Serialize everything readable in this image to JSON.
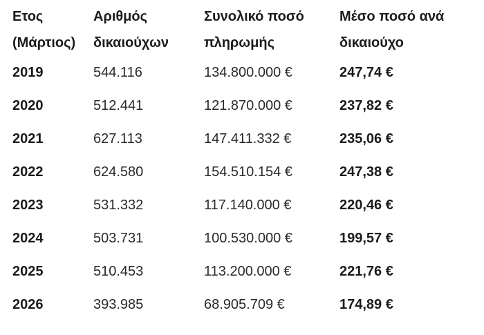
{
  "chart_data": {
    "type": "table",
    "title": "",
    "columns": [
      {
        "key": "year",
        "line1": "Ετος",
        "line2": "(Μάρτιος)"
      },
      {
        "key": "beneficiaries",
        "line1": "Αριθμός",
        "line2": "δικαιούχων"
      },
      {
        "key": "total",
        "line1": "Συνολικό ποσό",
        "line2": "πληρωμής"
      },
      {
        "key": "average",
        "line1": "Μέσο ποσό ανά",
        "line2": "δικαιούχο"
      }
    ],
    "rows": [
      {
        "year": "2019",
        "beneficiaries": "544.116",
        "total": "134.800.000 €",
        "average": "247,74 €"
      },
      {
        "year": "2020",
        "beneficiaries": "512.441",
        "total": "121.870.000 €",
        "average": "237,82 €"
      },
      {
        "year": "2021",
        "beneficiaries": "627.113",
        "total": "147.411.332 €",
        "average": "235,06 €"
      },
      {
        "year": "2022",
        "beneficiaries": "624.580",
        "total": "154.510.154 €",
        "average": "247,38 €"
      },
      {
        "year": "2023",
        "beneficiaries": "531.332",
        "total": "117.140.000 €",
        "average": "220,46 €"
      },
      {
        "year": "2024",
        "beneficiaries": "503.731",
        "total": "100.530.000 €",
        "average": "199,57 €"
      },
      {
        "year": "2025",
        "beneficiaries": "510.453",
        "total": "113.200.000 €",
        "average": "221,76 €"
      },
      {
        "year": "2026",
        "beneficiaries": "393.985",
        "total": "68.905.709 €",
        "average": "174,89 €"
      }
    ],
    "units": {
      "beneficiaries": "count",
      "total": "EUR",
      "average": "EUR"
    }
  },
  "colors": {
    "background": "#ffffff",
    "text_bold": "#1b1b1b",
    "text_regular": "#2a2a2a"
  }
}
